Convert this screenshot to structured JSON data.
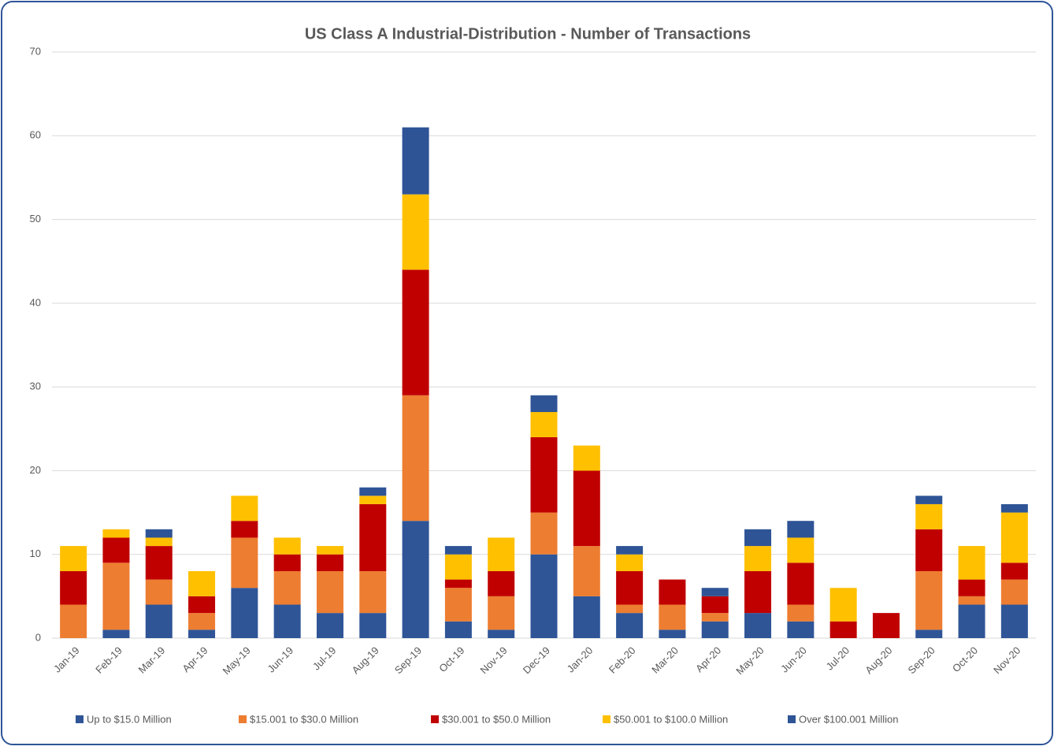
{
  "chart_data": {
    "type": "stacked-bar",
    "title": "US Class A Industrial-Distribution - Number of Transactions",
    "categories": [
      "Jan-19",
      "Feb-19",
      "Mar-19",
      "Apr-19",
      "May-19",
      "Jun-19",
      "Jul-19",
      "Aug-19",
      "Sep-19",
      "Oct-19",
      "Nov-19",
      "Dec-19",
      "Jan-20",
      "Feb-20",
      "Mar-20",
      "Apr-20",
      "May-20",
      "Jun-20",
      "Jul-20",
      "Aug-20",
      "Sep-20",
      "Oct-20",
      "Nov-20"
    ],
    "series": [
      {
        "name": "Up to $15.0 Million",
        "color": "#2f5597",
        "values": [
          0,
          1,
          4,
          1,
          6,
          4,
          3,
          3,
          14,
          2,
          1,
          10,
          5,
          3,
          1,
          2,
          3,
          2,
          0,
          0,
          1,
          4,
          4
        ]
      },
      {
        "name": "$15.001 to $30.0 Million",
        "color": "#ed7d31",
        "values": [
          4,
          8,
          3,
          2,
          6,
          4,
          5,
          5,
          15,
          4,
          4,
          5,
          6,
          1,
          3,
          1,
          0,
          2,
          0,
          0,
          7,
          1,
          3
        ]
      },
      {
        "name": "$30.001 to $50.0 Million",
        "color": "#c00000",
        "values": [
          4,
          3,
          4,
          2,
          2,
          2,
          2,
          8,
          15,
          1,
          3,
          9,
          9,
          4,
          3,
          2,
          5,
          5,
          2,
          3,
          5,
          2,
          2
        ]
      },
      {
        "name": "$50.001 to $100.0 Million",
        "color": "#ffc000",
        "values": [
          3,
          1,
          1,
          3,
          3,
          2,
          1,
          1,
          9,
          3,
          4,
          3,
          3,
          2,
          0,
          0,
          3,
          3,
          4,
          0,
          3,
          4,
          6
        ]
      },
      {
        "name": "Over $100.001 Million",
        "color": "#2e5496",
        "values": [
          0,
          0,
          1,
          0,
          0,
          0,
          0,
          1,
          8,
          1,
          0,
          2,
          0,
          1,
          0,
          1,
          2,
          2,
          0,
          0,
          1,
          0,
          1
        ]
      }
    ],
    "ylim": [
      0,
      70
    ],
    "yticks": [
      0,
      10,
      20,
      30,
      40,
      50,
      60,
      70
    ],
    "grid": true,
    "legend": "bottom"
  }
}
